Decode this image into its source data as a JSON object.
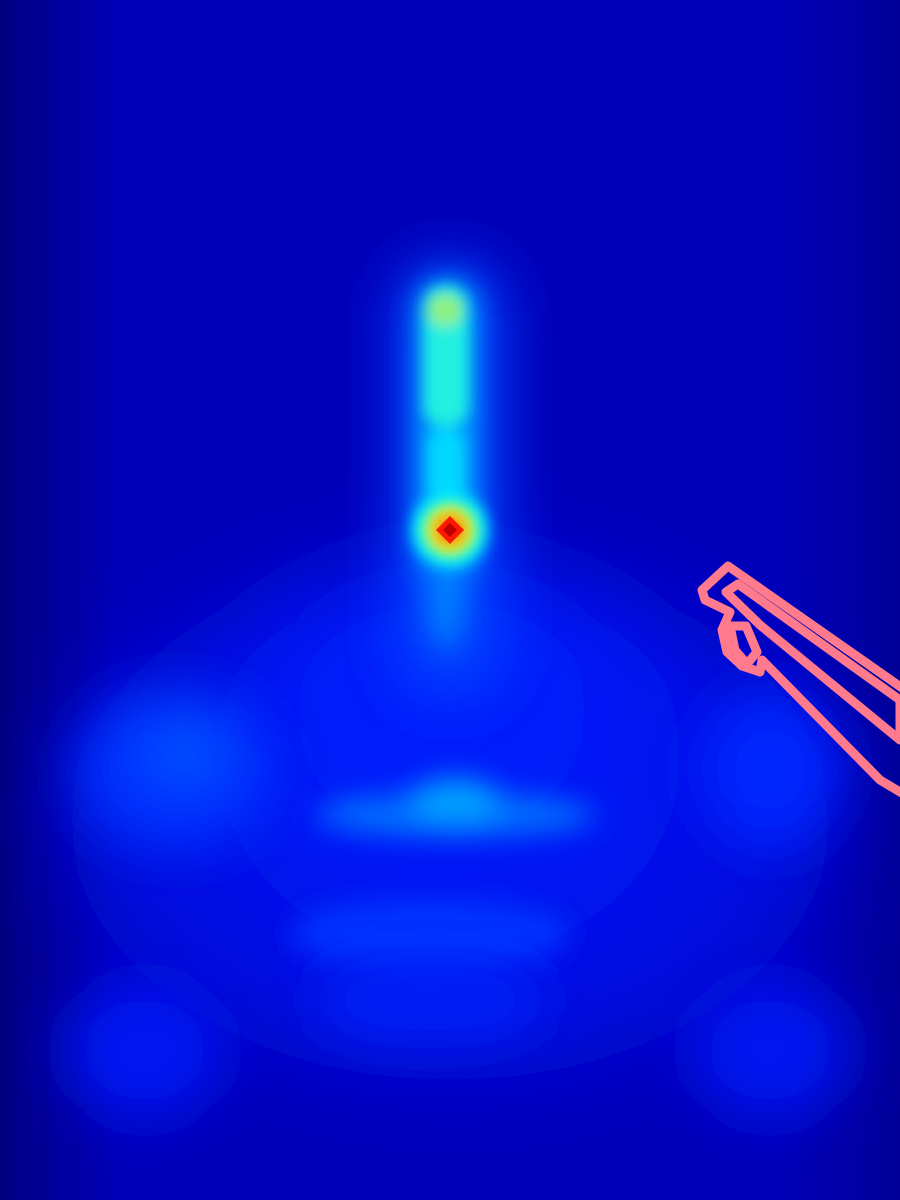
{
  "figure": {
    "kind": "saliency-heatmap",
    "colormap": "jet",
    "background_color": "#0000b4",
    "regions": [
      "peak-hotspot",
      "upper-vertical-streak",
      "central-wide-glow",
      "horizontal-band",
      "left-side-blob",
      "right-side-blob",
      "lower-center-glow",
      "lower-left-blob",
      "lower-right-blob"
    ],
    "overlay": {
      "shape": "pink outlined polygon (elongated diagonal contour)",
      "stroke_color": "#ff7a8c"
    }
  }
}
